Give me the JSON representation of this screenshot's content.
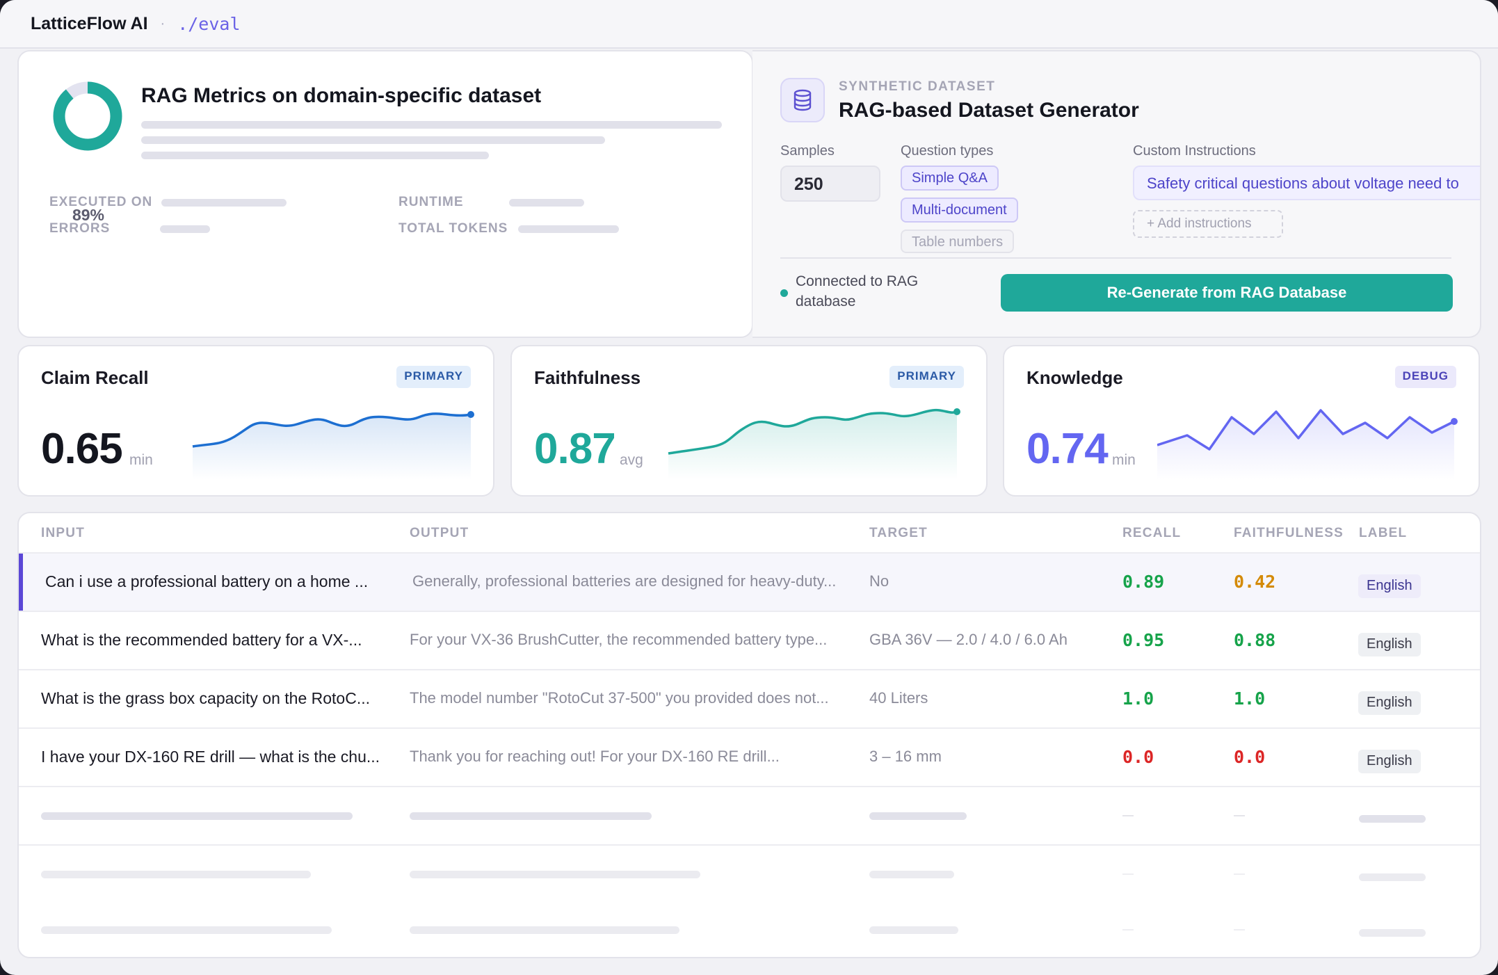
{
  "app": {
    "brand": "LatticeFlow AI",
    "separator": "·",
    "path": "./eval"
  },
  "eval": {
    "title": "RAG Metrics on domain-specific dataset",
    "progress_pct": "89%",
    "progress_value": 0.89,
    "meta": {
      "executed_on": "EXECUTED ON",
      "errors": "ERRORS",
      "runtime": "RUNTIME",
      "total_tokens": "TOTAL TOKENS"
    }
  },
  "generator": {
    "kicker": "SYNTHETIC DATASET",
    "title": "RAG-based Dataset Generator",
    "icon": "database-icon",
    "samples_label": "Samples",
    "samples_value": "250",
    "question_types_label": "Question types",
    "question_types": [
      "Simple Q&A",
      "Multi-document",
      "Table numbers"
    ],
    "custom_instructions_label": "Custom Instructions",
    "custom_instructions_value": "Safety critical questions about voltage need to",
    "add_instructions": "+ Add instructions",
    "status": "Connected to RAG database",
    "regen_button": "Re-Generate from RAG Database"
  },
  "metrics": [
    {
      "title": "Claim Recall",
      "badge": "PRIMARY",
      "value": "0.65",
      "unit": "min",
      "color": "#1d6fd1"
    },
    {
      "title": "Faithfulness",
      "badge": "PRIMARY",
      "value": "0.87",
      "unit": "avg",
      "color": "#1fa89a"
    },
    {
      "title": "Knowledge",
      "badge": "DEBUG",
      "value": "0.74",
      "unit": "min",
      "color": "#6366f1"
    }
  ],
  "table": {
    "headers": [
      "INPUT",
      "OUTPUT",
      "TARGET",
      "RECALL",
      "FAITHFULNESS",
      "LABEL"
    ],
    "rows": [
      {
        "input": "Can i use a professional battery on a home ...",
        "output": "Generally, professional batteries are designed for heavy-duty...",
        "target": "No",
        "recall": "0.89",
        "faithfulness": "0.42",
        "label": "English"
      },
      {
        "input": "What is the recommended battery for a VX-...",
        "output": "For your VX-36 BrushCutter, the recommended battery type...",
        "target": "GBA 36V — 2.0 / 4.0 / 6.0 Ah",
        "recall": "0.95",
        "faithfulness": "0.88",
        "label": "English"
      },
      {
        "input": "What is the grass box capacity on the RotoC...",
        "output": "The model number \"RotoCut 37-500\" you provided does not...",
        "target": "40 Liters",
        "recall": "1.0",
        "faithfulness": "1.0",
        "label": "English"
      },
      {
        "input": "I have your DX-160 RE drill — what is the chu...",
        "output": "Thank you for reaching out! For your DX-160 RE drill...",
        "target": "3 – 16 mm",
        "recall": "0.0",
        "faithfulness": "0.0",
        "label": "English"
      }
    ]
  }
}
